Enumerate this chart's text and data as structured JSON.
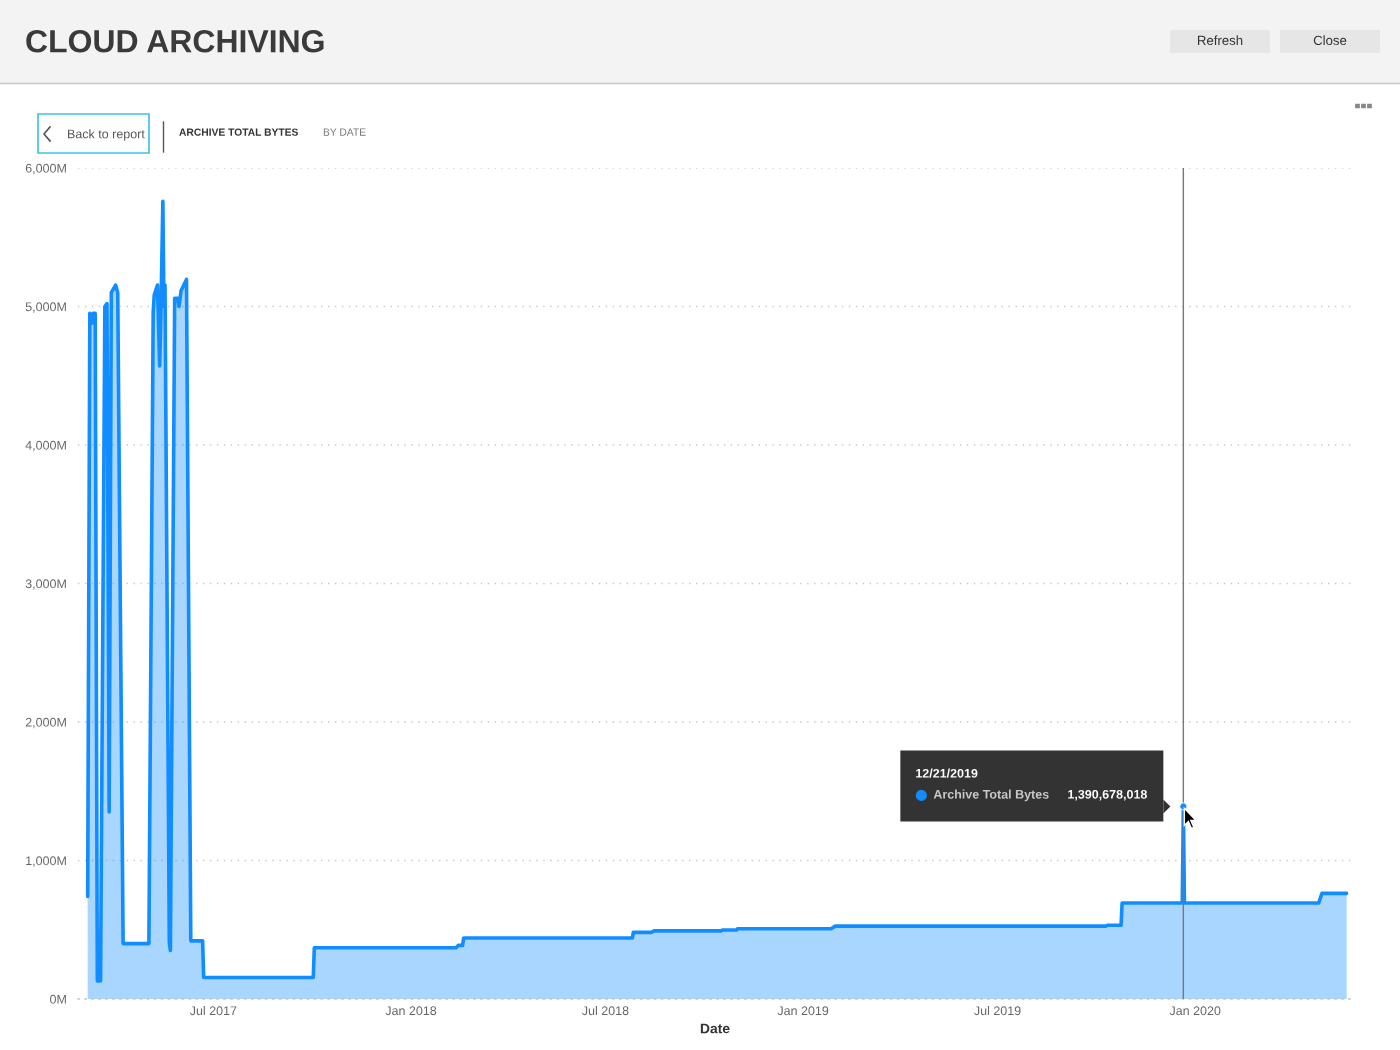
{
  "chart_data": {
    "type": "area",
    "title": "CLOUD ARCHIVING",
    "subtitle": "ARCHIVE TOTAL BYTES",
    "xlabel": "Date",
    "annotations": [
      "12/21/2019",
      "Archive Total Bytes",
      {
        "text": "1,390,678,018",
        "x": "2019-12-21",
        "y": 1390.678018
      },
      "Back to report",
      "BY DATE",
      "Refresh",
      "Close"
    ],
    "x": [
      "2017-03-06",
      "2017-03-08",
      "2017-03-10",
      "2017-03-11",
      "2017-03-13",
      "2017-03-15",
      "2017-03-18",
      "2017-03-22",
      "2017-03-24",
      "2017-03-26",
      "2017-03-28",
      "2017-04-01",
      "2017-04-03",
      "2017-04-08",
      "2017-05-02",
      "2017-05-06",
      "2017-05-07",
      "2017-05-10",
      "2017-05-12",
      "2017-05-13",
      "2017-05-15",
      "2017-05-16",
      "2017-05-17",
      "2017-05-21",
      "2017-05-22",
      "2017-05-26",
      "2017-05-29",
      "2017-05-30",
      "2017-06-01",
      "2017-06-06",
      "2017-06-10",
      "2017-06-21",
      "2017-06-22",
      "2017-10-02",
      "2017-10-03",
      "2018-02-12",
      "2018-02-14",
      "2018-02-18",
      "2018-02-19",
      "2018-07-26",
      "2018-07-27",
      "2018-08-13",
      "2018-08-15",
      "2018-10-17",
      "2018-10-18",
      "2018-10-31",
      "2018-11-01",
      "2019-01-27",
      "2019-01-31",
      "2019-10-10",
      "2019-10-11",
      "2019-10-24",
      "2019-10-25",
      "2019-12-20",
      "2019-12-21",
      "2019-12-22",
      "2020-04-25",
      "2020-04-28",
      "2020-05-21"
    ],
    "series": [
      {
        "color": "#118dff",
        "values": [
          740,
          4950,
          4880,
          4950,
          4950,
          130,
          130,
          5000,
          5020,
          1350,
          5100,
          5155,
          5100,
          400,
          400,
          4960,
          5085,
          5155,
          4570,
          4880,
          5760,
          5000,
          5155,
          410,
          350,
          5060,
          5060,
          5000,
          5115,
          5195,
          420,
          420,
          155,
          155,
          370,
          370,
          387,
          387,
          440,
          440,
          481,
          481,
          492,
          492,
          498,
          498,
          507,
          507,
          526,
          526,
          532,
          532,
          693,
          693,
          1390.678018,
          693,
          693,
          763,
          763
        ]
      }
    ],
    "xlim": [
      "2017-02-25",
      "2020-05-26"
    ],
    "ylim": [
      0,
      6000
    ],
    "xticks": [
      {
        "value": "2017-07-01",
        "label": "Jul 2017"
      },
      {
        "value": "2018-01-01",
        "label": "Jan 2018"
      },
      {
        "value": "2018-07-01",
        "label": "Jul 2018"
      },
      {
        "value": "2019-01-01",
        "label": "Jan 2019"
      },
      {
        "value": "2019-07-01",
        "label": "Jul 2019"
      },
      {
        "value": "2020-01-01",
        "label": "Jan 2020"
      }
    ],
    "yticks": [
      {
        "value": 0,
        "label": "0M"
      },
      {
        "value": 1000,
        "label": "1,000M"
      },
      {
        "value": 2000,
        "label": "2,000M"
      },
      {
        "value": 3000,
        "label": "3,000M"
      },
      {
        "value": 4000,
        "label": "4,000M"
      },
      {
        "value": 5000,
        "label": "5,000M"
      },
      {
        "value": 6000,
        "label": "6,000M"
      }
    ],
    "grid": "y",
    "ref_lines": [
      {
        "axis": "x",
        "value": "2019-12-21",
        "color": "#777777"
      }
    ]
  }
}
